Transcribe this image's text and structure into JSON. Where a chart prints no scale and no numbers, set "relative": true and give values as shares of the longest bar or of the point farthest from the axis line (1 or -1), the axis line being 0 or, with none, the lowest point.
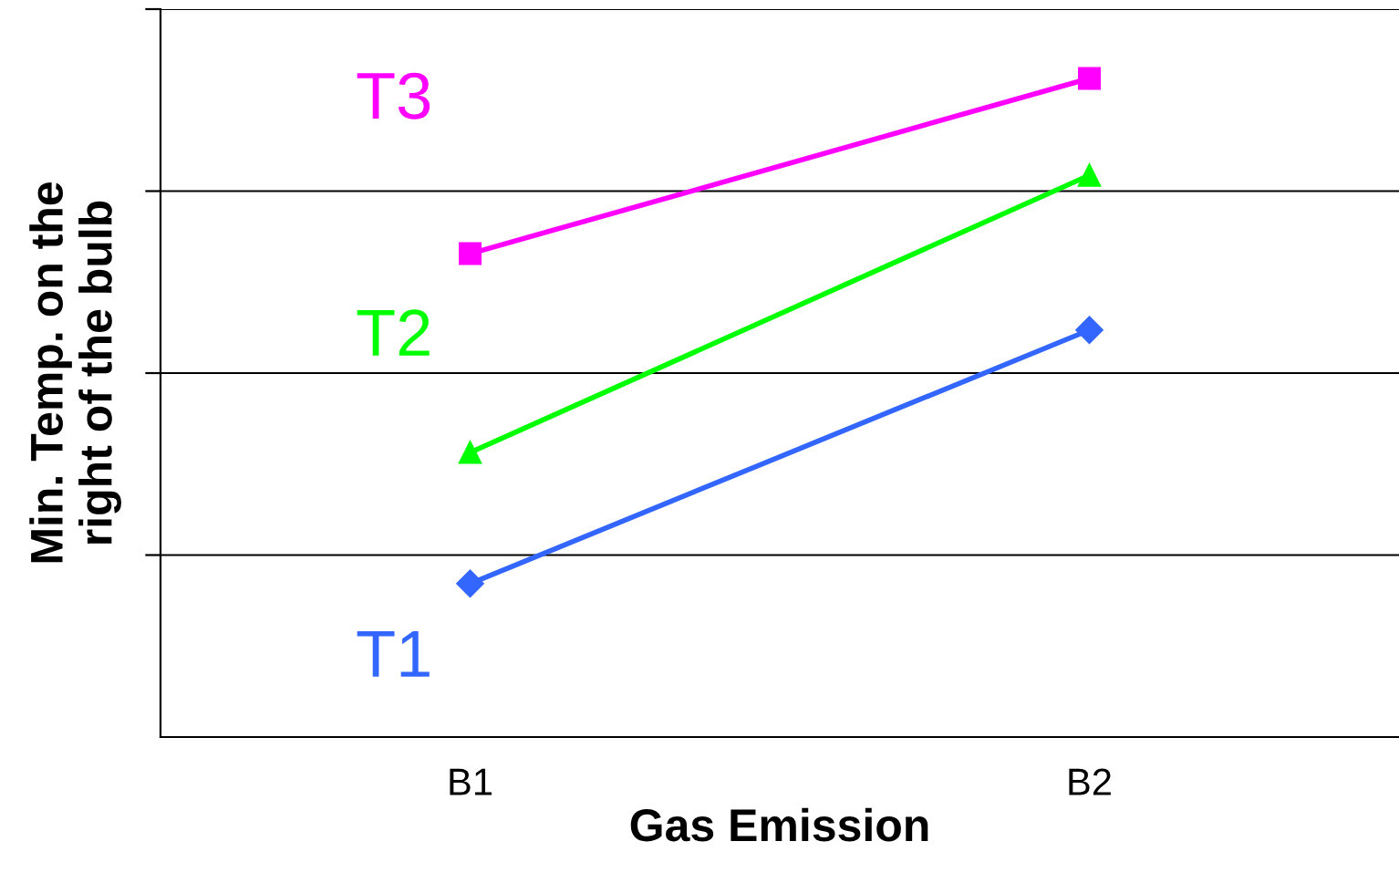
{
  "chart_data": {
    "type": "line",
    "xlabel": "Gas Emission",
    "ylabel": "Min. Temp. on the right of the bulb",
    "categories": [
      "B1",
      "B2"
    ],
    "relative": true,
    "grid": "y",
    "legend": false,
    "series": [
      {
        "name": "T1",
        "color": "#3366ff",
        "marker": "diamond",
        "values": [
          0.233,
          0.618
        ]
      },
      {
        "name": "T2",
        "color": "#00ff00",
        "marker": "triangle",
        "values": [
          0.432,
          0.853
        ]
      },
      {
        "name": "T3",
        "color": "#ff00ff",
        "marker": "square",
        "values": [
          0.734,
          1
        ]
      }
    ]
  }
}
